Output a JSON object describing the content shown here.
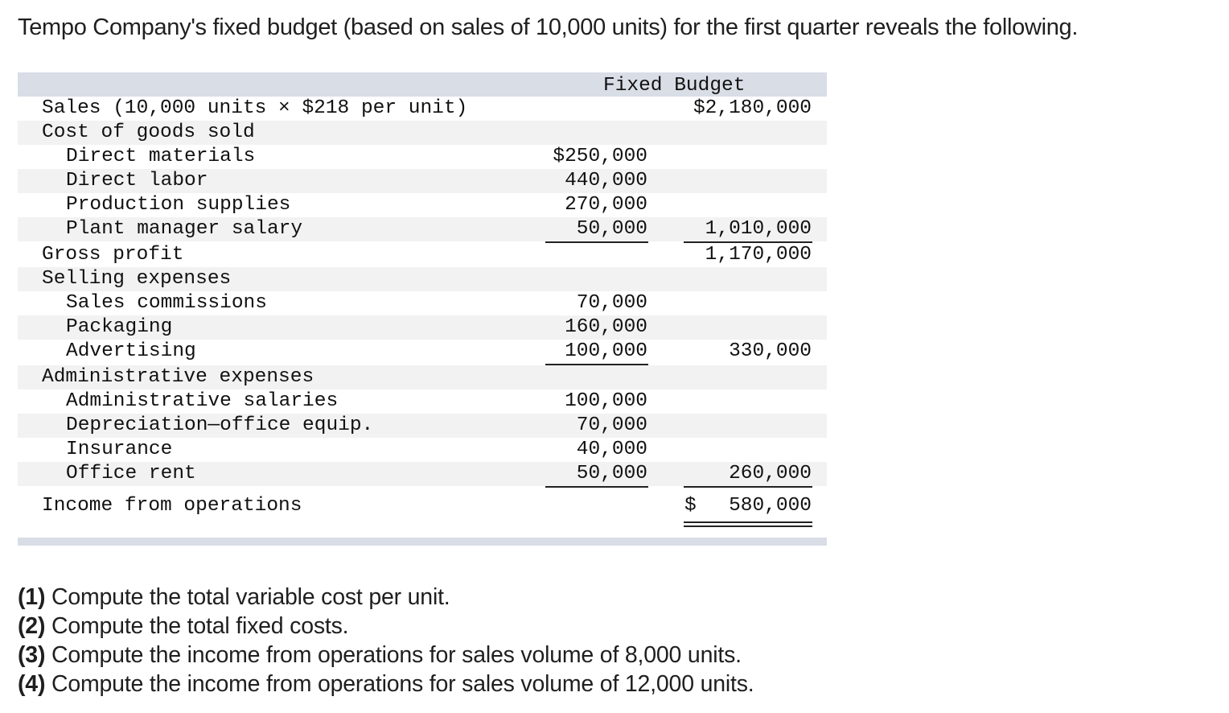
{
  "intro": "Tempo Company's fixed budget (based on sales of 10,000 units) for the first quarter reveals the following.",
  "table": {
    "header": "Fixed Budget",
    "rows": [
      {
        "label": "Sales (10,000 units × $218 per unit)",
        "c1": "",
        "c2": "$2,180,000"
      },
      {
        "label": "Cost of goods sold",
        "c1": "",
        "c2": ""
      },
      {
        "label": "Direct materials",
        "c1": "$250,000",
        "c2": ""
      },
      {
        "label": "Direct labor",
        "c1": "440,000",
        "c2": ""
      },
      {
        "label": "Production supplies",
        "c1": "270,000",
        "c2": ""
      },
      {
        "label": "Plant manager salary",
        "c1": "50,000",
        "c2": "1,010,000"
      },
      {
        "label": "Gross profit",
        "c1": "",
        "c2": "1,170,000"
      },
      {
        "label": "Selling expenses",
        "c1": "",
        "c2": ""
      },
      {
        "label": "Sales commissions",
        "c1": "70,000",
        "c2": ""
      },
      {
        "label": "Packaging",
        "c1": "160,000",
        "c2": ""
      },
      {
        "label": "Advertising",
        "c1": "100,000",
        "c2": "330,000"
      },
      {
        "label": "Administrative expenses",
        "c1": "",
        "c2": ""
      },
      {
        "label": "Administrative salaries",
        "c1": "100,000",
        "c2": ""
      },
      {
        "label": "Depreciation—office equip.",
        "c1": "70,000",
        "c2": ""
      },
      {
        "label": "Insurance",
        "c1": "40,000",
        "c2": ""
      },
      {
        "label": "Office rent",
        "c1": "50,000",
        "c2": "260,000"
      },
      {
        "label": "Income from operations",
        "c1": "",
        "c2_symbol": "$",
        "c2": "580,000"
      }
    ]
  },
  "questions": [
    {
      "num": "(1)",
      "text": " Compute the total variable cost per unit."
    },
    {
      "num": "(2)",
      "text": " Compute the total fixed costs."
    },
    {
      "num": "(3)",
      "text": " Compute the income from operations for sales volume of 8,000 units."
    },
    {
      "num": "(4)",
      "text": " Compute the income from operations for sales volume of 12,000 units."
    }
  ]
}
